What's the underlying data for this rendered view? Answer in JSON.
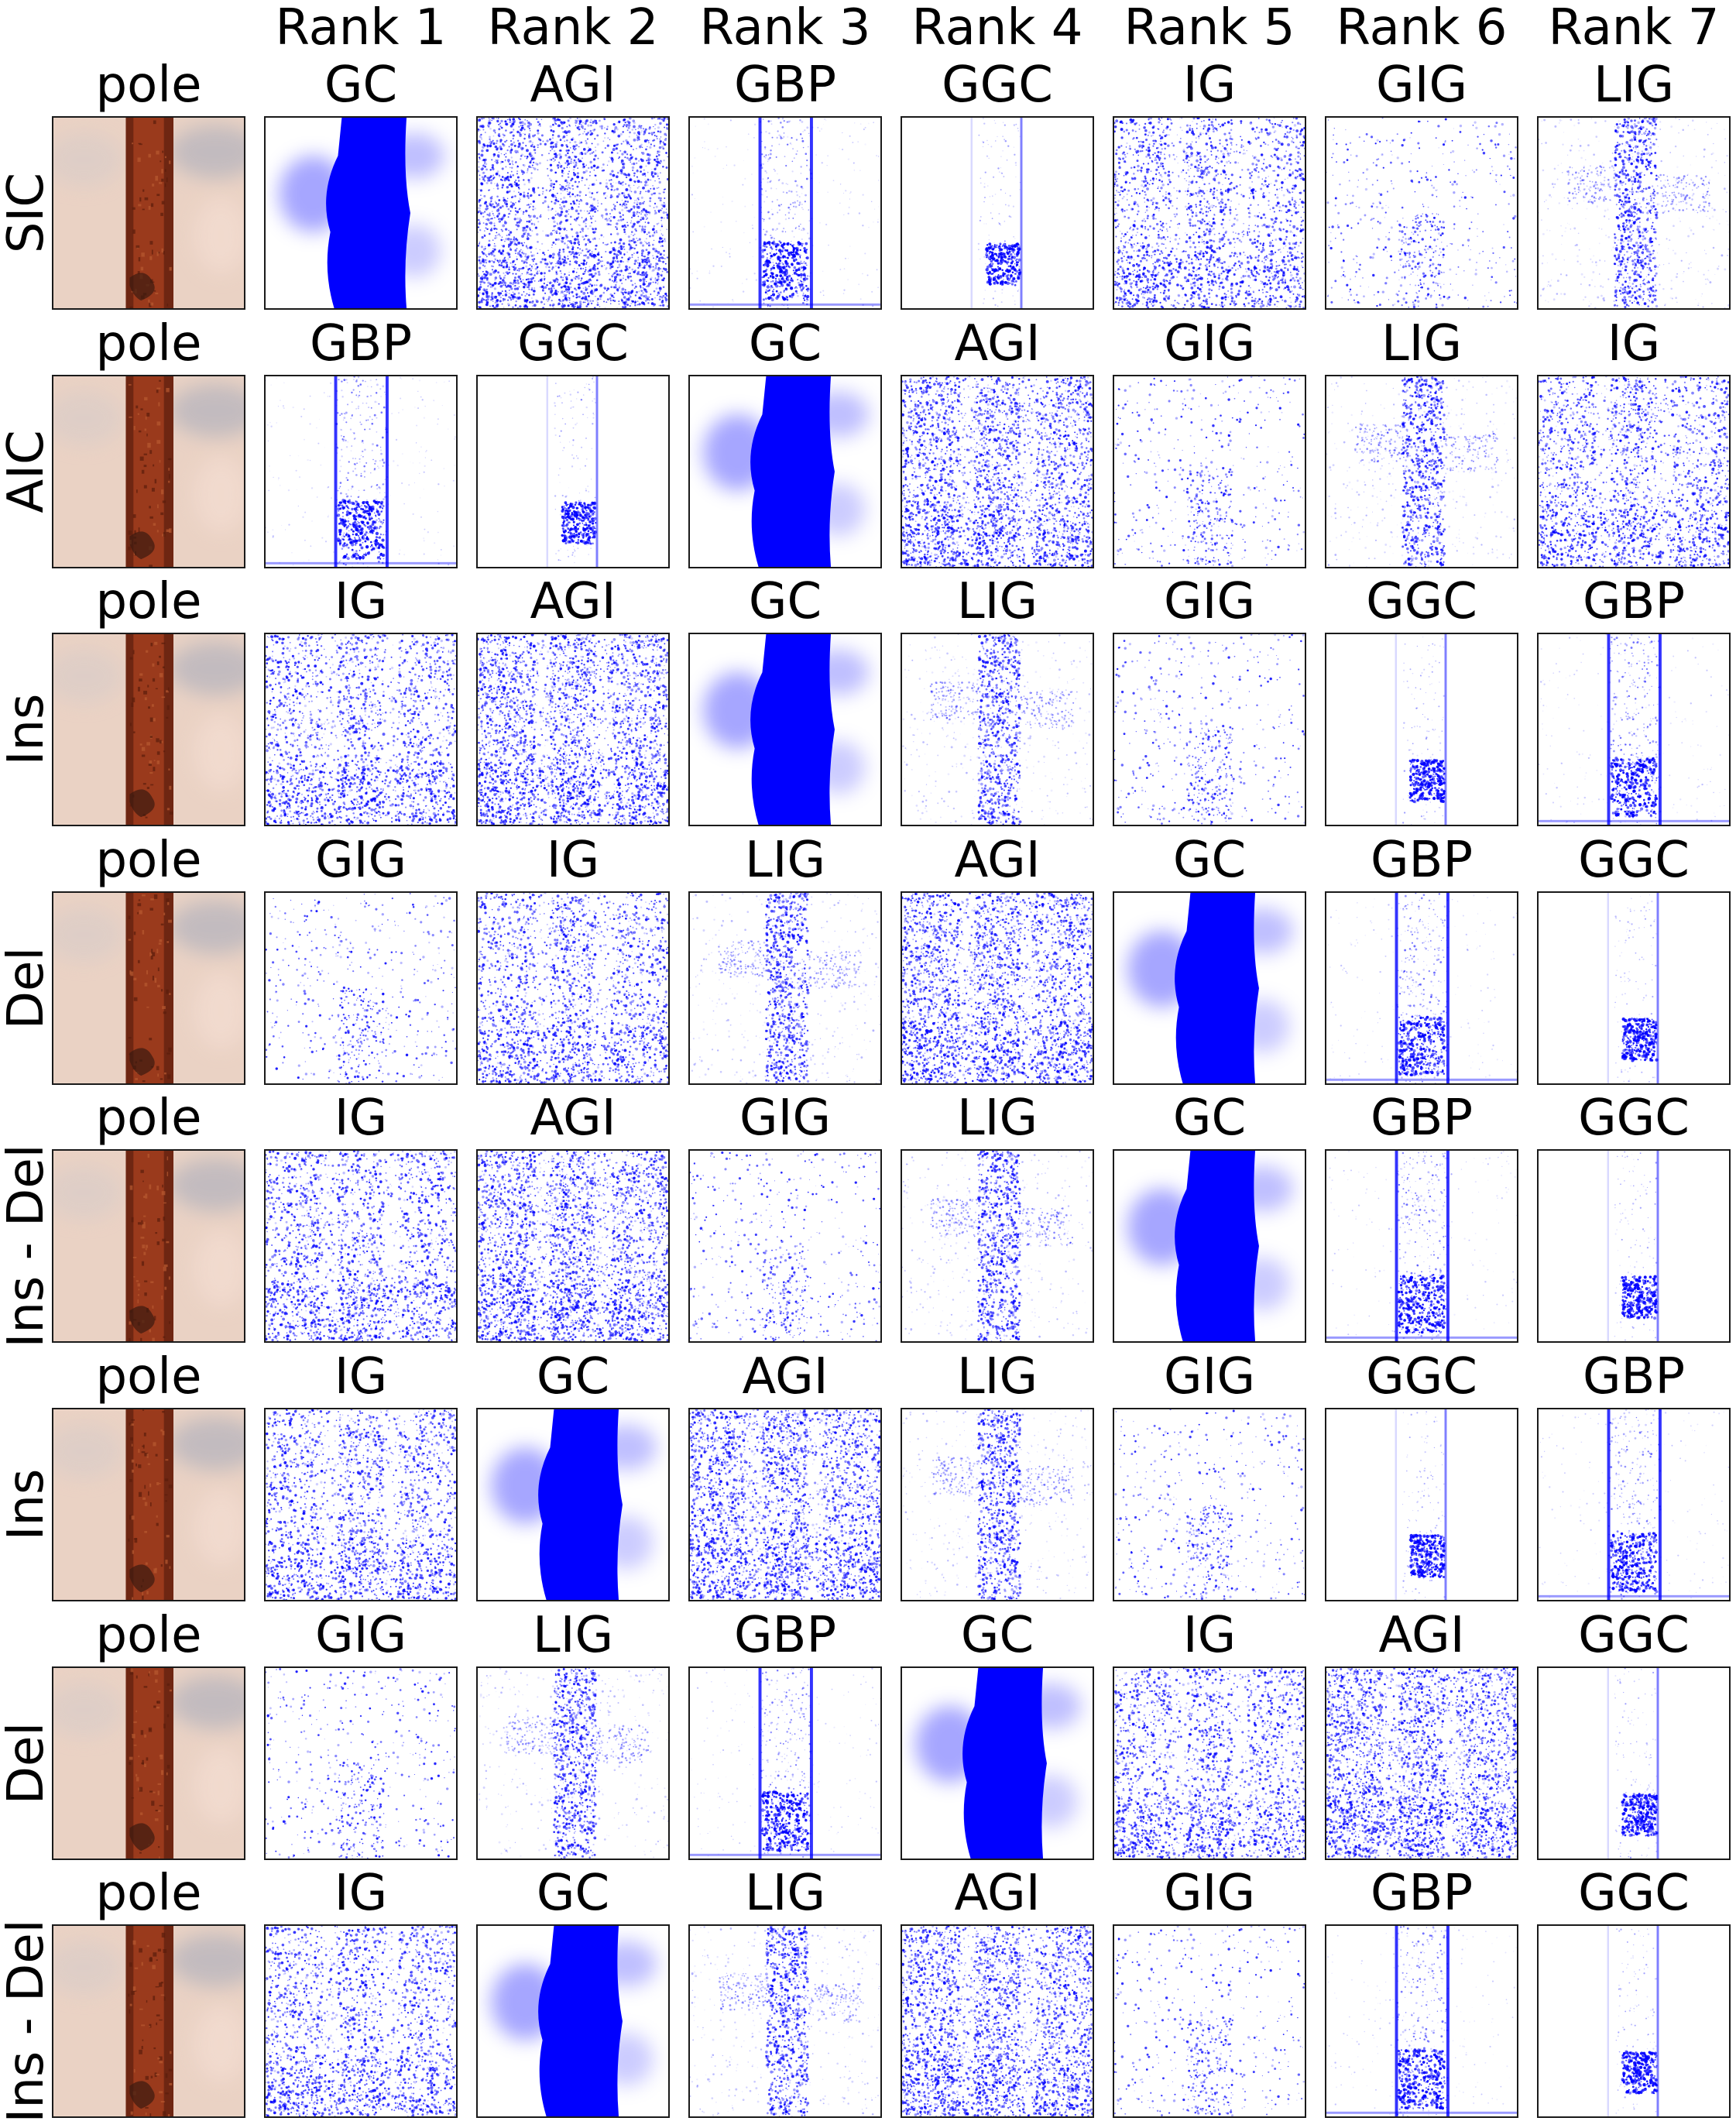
{
  "rank_headers": [
    "Rank 1",
    "Rank 2",
    "Rank 3",
    "Rank 4",
    "Rank 5",
    "Rank 6",
    "Rank 7"
  ],
  "image_label": "pole",
  "rows": [
    {
      "metric": "SIC",
      "methods": [
        "GC",
        "AGI",
        "GBP",
        "GGC",
        "IG",
        "GIG",
        "LIG"
      ]
    },
    {
      "metric": "AIC",
      "methods": [
        "GBP",
        "GGC",
        "GC",
        "AGI",
        "GIG",
        "LIG",
        "IG"
      ]
    },
    {
      "metric": "Ins",
      "methods": [
        "IG",
        "AGI",
        "GC",
        "LIG",
        "GIG",
        "GGC",
        "GBP"
      ]
    },
    {
      "metric": "Del",
      "methods": [
        "GIG",
        "IG",
        "LIG",
        "AGI",
        "GC",
        "GBP",
        "GGC"
      ]
    },
    {
      "metric": "Ins - Del",
      "methods": [
        "IG",
        "AGI",
        "GIG",
        "LIG",
        "GC",
        "GBP",
        "GGC"
      ]
    },
    {
      "metric": "Ins",
      "methods": [
        "IG",
        "GC",
        "AGI",
        "LIG",
        "GIG",
        "GGC",
        "GBP"
      ]
    },
    {
      "metric": "Del",
      "methods": [
        "GIG",
        "LIG",
        "GBP",
        "GC",
        "IG",
        "AGI",
        "GGC"
      ]
    },
    {
      "metric": "Ins - Del",
      "methods": [
        "IG",
        "GC",
        "LIG",
        "AGI",
        "GIG",
        "GBP",
        "GGC"
      ]
    }
  ],
  "colors": {
    "saliency": "#0000ff",
    "pole": "#9a3a1c",
    "sky": "#ead2c4",
    "cloud": "#b9b6be",
    "border": "#1a1a1a"
  }
}
